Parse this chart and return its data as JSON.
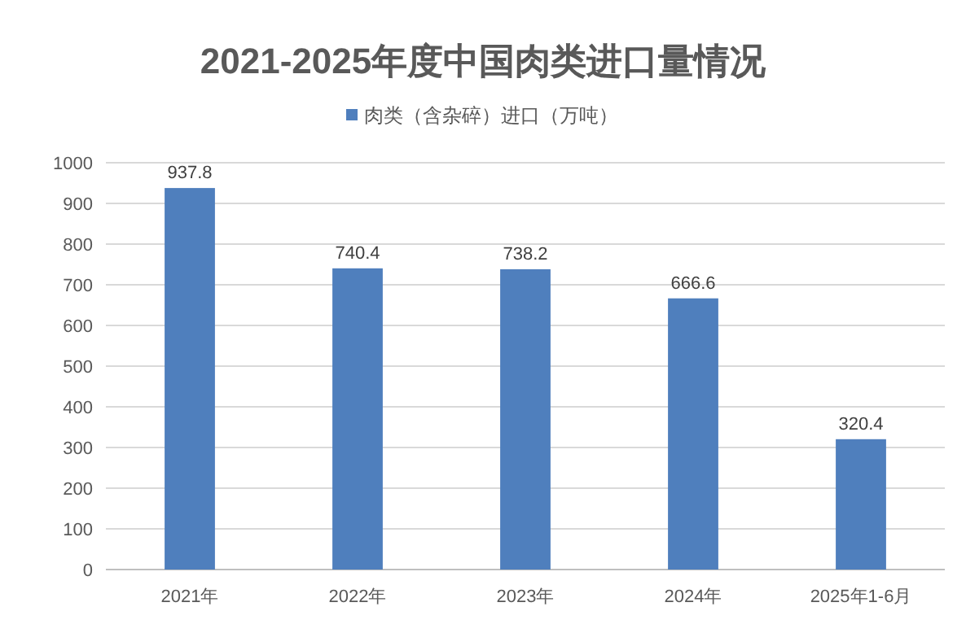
{
  "chart_data": {
    "type": "bar",
    "title": "2021-2025年度中国肉类进口量情况",
    "categories": [
      "2021年",
      "2022年",
      "2023年",
      "2024年",
      "2025年1-6月"
    ],
    "series": [
      {
        "name": "肉类（含杂碎）进口（万吨）",
        "color": "#4f7fbd",
        "values": [
          937.8,
          740.4,
          738.2,
          666.6,
          320.4
        ]
      }
    ],
    "ylim": [
      0,
      1000
    ],
    "yticks": [
      0,
      100,
      200,
      300,
      400,
      500,
      600,
      700,
      800,
      900,
      1000
    ],
    "grid": "y",
    "legend": "top",
    "data_labels": true
  }
}
